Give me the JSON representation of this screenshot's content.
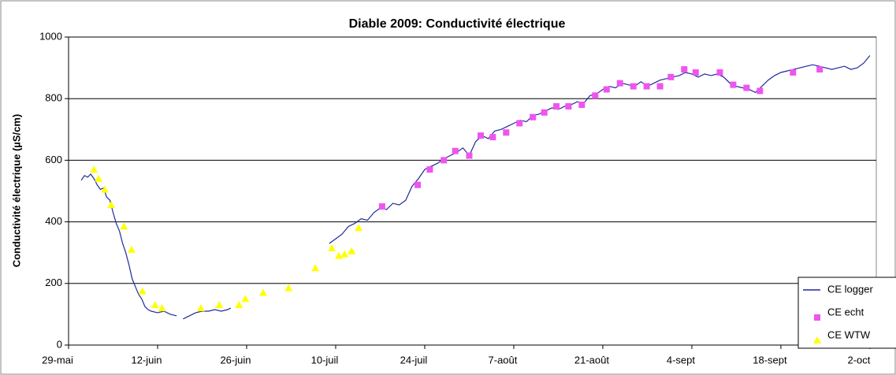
{
  "chart_data": {
    "type": "line",
    "title": "Diable 2009: Conductivité électrique",
    "y_label": "Conductivité électrique (µS/cm)",
    "xlim": [
      0,
      127
    ],
    "ylim": [
      0,
      1000
    ],
    "xticks": [
      {
        "value": 0,
        "label": "29-mai"
      },
      {
        "value": 14,
        "label": "12-juin"
      },
      {
        "value": 28,
        "label": "26-juin"
      },
      {
        "value": 42,
        "label": "10-juil"
      },
      {
        "value": 56,
        "label": "24-juil"
      },
      {
        "value": 70,
        "label": "7-août"
      },
      {
        "value": 84,
        "label": "21-août"
      },
      {
        "value": 98,
        "label": "4-sept"
      },
      {
        "value": 112,
        "label": "18-sept"
      },
      {
        "value": 126,
        "label": "2-oct"
      }
    ],
    "yticks": [
      0,
      200,
      400,
      600,
      800,
      1000
    ],
    "grid": true,
    "legend": "lower right",
    "series": [
      {
        "name": "CE logger",
        "style": "line",
        "color": "#1f2a9a",
        "x": [
          2,
          2.5,
          3,
          3.5,
          4,
          4.5,
          5,
          5.5,
          6,
          6.5,
          7,
          7.5,
          8,
          8.5,
          9,
          9.5,
          10,
          10.5,
          11,
          11.5,
          12,
          12.5,
          13,
          14,
          15,
          16,
          17,
          17.5,
          18,
          19,
          20,
          21,
          22,
          23,
          24,
          25,
          25.5,
          26,
          41,
          42,
          43,
          44,
          45,
          46,
          47,
          48,
          49,
          50,
          51,
          52,
          53,
          54,
          55,
          56,
          57,
          58,
          59,
          60,
          61,
          62,
          63,
          64,
          65,
          66,
          67,
          68,
          69,
          70,
          71,
          72,
          73,
          74,
          75,
          76,
          77,
          78,
          79,
          80,
          81,
          82,
          83,
          84,
          85,
          86,
          87,
          88,
          89,
          90,
          91,
          92,
          93,
          94,
          95,
          96,
          97,
          98,
          99,
          100,
          101,
          102,
          103,
          104,
          105,
          106,
          107,
          108,
          109,
          110,
          111,
          112,
          113,
          114,
          115,
          116,
          117,
          118,
          119,
          120,
          121,
          122,
          123,
          124,
          125,
          126
        ],
        "values": [
          535,
          550,
          545,
          555,
          540,
          520,
          505,
          510,
          480,
          470,
          430,
          395,
          370,
          330,
          300,
          260,
          215,
          190,
          165,
          150,
          125,
          115,
          110,
          105,
          110,
          100,
          95,
          null,
          85,
          95,
          105,
          110,
          110,
          115,
          110,
          115,
          120,
          null,
          330,
          345,
          360,
          385,
          395,
          410,
          405,
          430,
          445,
          440,
          460,
          455,
          470,
          515,
          540,
          570,
          580,
          590,
          605,
          615,
          625,
          640,
          615,
          660,
          680,
          670,
          695,
          700,
          710,
          720,
          730,
          725,
          745,
          750,
          760,
          770,
          765,
          775,
          780,
          790,
          785,
          810,
          815,
          830,
          840,
          835,
          850,
          845,
          840,
          855,
          840,
          850,
          860,
          865,
          870,
          875,
          885,
          880,
          870,
          880,
          875,
          880,
          870,
          850,
          840,
          835,
          830,
          820,
          840,
          860,
          875,
          885,
          890,
          895,
          900,
          905,
          910,
          905,
          900,
          895,
          900,
          905,
          895,
          900,
          915,
          940
        ]
      },
      {
        "name": "CE echt",
        "style": "square",
        "color": "#ee55ee",
        "x": [
          49.3,
          54.9,
          56.8,
          59,
          60.8,
          63,
          64.8,
          66.7,
          68.8,
          70.9,
          73,
          74.8,
          76.7,
          78.6,
          80.7,
          82.8,
          84.6,
          86.7,
          88.8,
          90.9,
          93,
          94.7,
          96.8,
          98.6,
          102.4,
          104.5,
          106.6,
          108.7,
          113.9,
          118.1
        ],
        "values": [
          450,
          520,
          570,
          600,
          630,
          615,
          680,
          675,
          690,
          720,
          740,
          755,
          775,
          775,
          780,
          810,
          830,
          850,
          840,
          840,
          840,
          870,
          895,
          885,
          885,
          845,
          835,
          825,
          885,
          895
        ]
      },
      {
        "name": "CE WTW",
        "style": "triangle",
        "color": "#ffff00",
        "x": [
          4,
          4.7,
          5.7,
          6.7,
          8.7,
          9.9,
          11.6,
          13.6,
          14.7,
          20.8,
          23.7,
          26.8,
          27.8,
          30.6,
          34.6,
          38.8,
          41.4,
          42.5,
          43.4,
          44.5,
          45.6
        ],
        "values": [
          570,
          540,
          505,
          455,
          385,
          310,
          175,
          130,
          120,
          120,
          130,
          130,
          150,
          170,
          185,
          250,
          315,
          290,
          295,
          305,
          380
        ]
      }
    ]
  }
}
